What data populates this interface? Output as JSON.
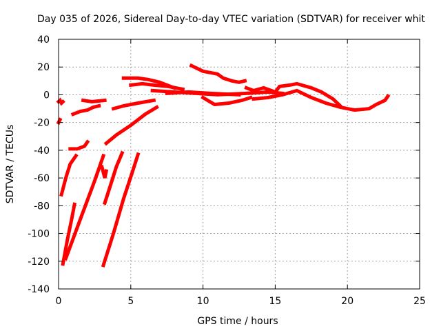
{
  "chart_data": {
    "type": "line",
    "title": "Day 035 of 2026, Sidereal Day-to-day VTEC variation (SDTVAR) for receiver whit",
    "xlabel": "GPS time / hours",
    "ylabel": "SDTVAR / TECUs",
    "xlim": [
      0,
      25
    ],
    "ylim": [
      -140,
      40
    ],
    "grid": true,
    "legend": "none",
    "line_color": "#ff0000",
    "x_ticks": [
      {
        "value": 0,
        "label": "0"
      },
      {
        "value": 5,
        "label": "5"
      },
      {
        "value": 10,
        "label": "10"
      },
      {
        "value": 15,
        "label": "15"
      },
      {
        "value": 20,
        "label": "20"
      },
      {
        "value": 25,
        "label": "25"
      }
    ],
    "y_ticks": [
      {
        "value": 40,
        "label": "40"
      },
      {
        "value": 20,
        "label": "20"
      },
      {
        "value": 0,
        "label": "0"
      },
      {
        "value": -20,
        "label": "-20"
      },
      {
        "value": -40,
        "label": "-40"
      },
      {
        "value": -60,
        "label": "-60"
      },
      {
        "value": -80,
        "label": "-80"
      },
      {
        "value": -100,
        "label": "-100"
      },
      {
        "value": -120,
        "label": "-120"
      },
      {
        "value": -140,
        "label": "-140"
      }
    ],
    "series": [
      {
        "name": "segment-01",
        "points": [
          [
            0.0,
            -5
          ],
          [
            0.1,
            -4
          ],
          [
            0.2,
            -6
          ],
          [
            0.3,
            -5
          ]
        ]
      },
      {
        "name": "segment-02",
        "points": [
          [
            0.0,
            -20
          ],
          [
            0.1,
            -18
          ]
        ]
      },
      {
        "name": "segment-03",
        "points": [
          [
            1.0,
            -14
          ],
          [
            1.5,
            -12
          ],
          [
            2.0,
            -11
          ],
          [
            2.4,
            -9
          ],
          [
            2.8,
            -8
          ]
        ]
      },
      {
        "name": "segment-04",
        "points": [
          [
            1.7,
            -4
          ],
          [
            2.3,
            -5
          ],
          [
            3.2,
            -4
          ]
        ]
      },
      {
        "name": "segment-05",
        "points": [
          [
            0.8,
            -39
          ],
          [
            1.3,
            -39
          ],
          [
            1.8,
            -37
          ],
          [
            2.0,
            -34
          ]
        ]
      },
      {
        "name": "segment-06",
        "points": [
          [
            0.2,
            -72
          ],
          [
            0.5,
            -60
          ],
          [
            0.8,
            -50
          ],
          [
            1.2,
            -44
          ]
        ]
      },
      {
        "name": "segment-07",
        "points": [
          [
            0.3,
            -122
          ],
          [
            0.6,
            -105
          ],
          [
            0.9,
            -90
          ],
          [
            1.1,
            -79
          ]
        ]
      },
      {
        "name": "segment-08",
        "points": [
          [
            0.5,
            -118
          ],
          [
            1.5,
            -90
          ],
          [
            2.5,
            -62
          ],
          [
            3.1,
            -44
          ]
        ]
      },
      {
        "name": "segment-09",
        "points": [
          [
            3.0,
            -52
          ],
          [
            3.2,
            -60
          ],
          [
            3.3,
            -55
          ]
        ]
      },
      {
        "name": "segment-10",
        "points": [
          [
            3.2,
            -78
          ],
          [
            3.6,
            -65
          ],
          [
            4.0,
            -52
          ],
          [
            4.4,
            -42
          ]
        ]
      },
      {
        "name": "segment-11",
        "points": [
          [
            3.1,
            -123
          ],
          [
            3.8,
            -100
          ],
          [
            4.5,
            -75
          ],
          [
            5.1,
            -56
          ],
          [
            5.5,
            -43
          ]
        ]
      },
      {
        "name": "segment-12",
        "points": [
          [
            3.3,
            -35
          ],
          [
            4.0,
            -29
          ],
          [
            5.0,
            -22
          ],
          [
            6.0,
            -14
          ],
          [
            6.8,
            -9
          ]
        ]
      },
      {
        "name": "segment-13",
        "points": [
          [
            3.8,
            -10
          ],
          [
            4.5,
            -8
          ],
          [
            5.5,
            -6
          ],
          [
            6.6,
            -4
          ]
        ]
      },
      {
        "name": "segment-14",
        "points": [
          [
            4.5,
            12
          ],
          [
            5.5,
            12
          ],
          [
            6.2,
            11
          ],
          [
            7.0,
            9
          ],
          [
            8.0,
            5
          ]
        ]
      },
      {
        "name": "segment-15",
        "points": [
          [
            5.0,
            7
          ],
          [
            5.8,
            8
          ],
          [
            6.6,
            7
          ],
          [
            7.6,
            6
          ],
          [
            8.6,
            4
          ]
        ]
      },
      {
        "name": "segment-16",
        "points": [
          [
            6.5,
            3
          ],
          [
            8.0,
            2
          ],
          [
            9.5,
            1
          ],
          [
            11.0,
            0
          ],
          [
            13.0,
            1
          ],
          [
            14.5,
            2
          ],
          [
            15.5,
            1
          ]
        ]
      },
      {
        "name": "segment-17",
        "points": [
          [
            7.5,
            1
          ],
          [
            9.0,
            2
          ],
          [
            10.5,
            1
          ],
          [
            12.5,
            0
          ]
        ]
      },
      {
        "name": "segment-18",
        "points": [
          [
            9.2,
            21
          ],
          [
            9.6,
            19
          ],
          [
            10.0,
            17
          ],
          [
            10.5,
            16
          ],
          [
            11.0,
            15
          ],
          [
            11.4,
            12
          ],
          [
            12.0,
            10
          ],
          [
            12.5,
            9
          ],
          [
            12.9,
            10
          ]
        ]
      },
      {
        "name": "segment-19",
        "points": [
          [
            10.0,
            -2
          ],
          [
            10.8,
            -7
          ],
          [
            11.8,
            -6
          ],
          [
            12.7,
            -4
          ],
          [
            13.3,
            -2
          ]
        ]
      },
      {
        "name": "segment-20",
        "points": [
          [
            13.0,
            5
          ],
          [
            13.5,
            3
          ],
          [
            14.2,
            5
          ],
          [
            15.0,
            2
          ],
          [
            15.3,
            6
          ],
          [
            16.0,
            7
          ],
          [
            16.5,
            8
          ],
          [
            17.5,
            5
          ],
          [
            18.2,
            2
          ],
          [
            19.0,
            -3
          ],
          [
            19.5,
            -8
          ]
        ]
      },
      {
        "name": "segment-21",
        "points": [
          [
            13.5,
            -3
          ],
          [
            14.5,
            -2
          ],
          [
            15.5,
            0
          ],
          [
            16.5,
            3
          ],
          [
            17.5,
            -2
          ],
          [
            18.5,
            -6
          ],
          [
            19.5,
            -9
          ],
          [
            20.5,
            -11
          ],
          [
            21.5,
            -10
          ],
          [
            22.0,
            -7
          ],
          [
            22.6,
            -4
          ],
          [
            22.8,
            -1
          ]
        ]
      }
    ]
  }
}
